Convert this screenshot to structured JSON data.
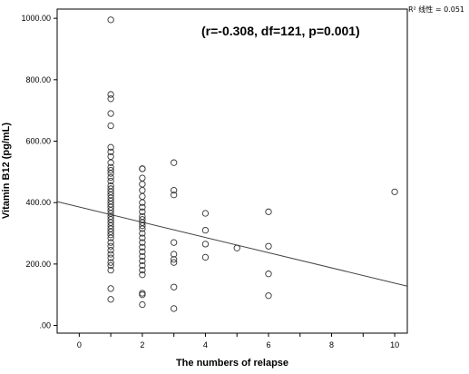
{
  "chart_data": {
    "type": "scatter",
    "title": "",
    "xlabel": "The numbers of relapse",
    "ylabel": "Vitamin B12 (pg/mL)",
    "xlim": [
      -0.7,
      10.4
    ],
    "ylim": [
      -25,
      1030
    ],
    "x_ticks": [
      "0",
      "2",
      "4",
      "6",
      "8",
      "10"
    ],
    "y_ticks": [
      ".00",
      "200.00",
      "400.00",
      "600.00",
      "800.00",
      "1000.00"
    ],
    "annotation": "(r=-0.308, df=121, p=0.001)",
    "r2_label": "R² 线性 = 0.051",
    "fit_line": {
      "x": [
        -0.7,
        10.4
      ],
      "y": [
        403,
        128
      ]
    },
    "grid": false,
    "legend": "none",
    "points": [
      {
        "x": 1,
        "y": 995
      },
      {
        "x": 1,
        "y": 752
      },
      {
        "x": 1,
        "y": 738
      },
      {
        "x": 1,
        "y": 690
      },
      {
        "x": 1,
        "y": 650
      },
      {
        "x": 1,
        "y": 580
      },
      {
        "x": 1,
        "y": 565
      },
      {
        "x": 1,
        "y": 550
      },
      {
        "x": 1,
        "y": 530
      },
      {
        "x": 1,
        "y": 515
      },
      {
        "x": 1,
        "y": 505
      },
      {
        "x": 1,
        "y": 495
      },
      {
        "x": 1,
        "y": 482
      },
      {
        "x": 1,
        "y": 470
      },
      {
        "x": 1,
        "y": 455
      },
      {
        "x": 1,
        "y": 445
      },
      {
        "x": 1,
        "y": 435
      },
      {
        "x": 1,
        "y": 425
      },
      {
        "x": 1,
        "y": 415
      },
      {
        "x": 1,
        "y": 405
      },
      {
        "x": 1,
        "y": 395
      },
      {
        "x": 1,
        "y": 385
      },
      {
        "x": 1,
        "y": 375
      },
      {
        "x": 1,
        "y": 365
      },
      {
        "x": 1,
        "y": 355
      },
      {
        "x": 1,
        "y": 345
      },
      {
        "x": 1,
        "y": 335
      },
      {
        "x": 1,
        "y": 325
      },
      {
        "x": 1,
        "y": 315
      },
      {
        "x": 1,
        "y": 305
      },
      {
        "x": 1,
        "y": 295
      },
      {
        "x": 1,
        "y": 285
      },
      {
        "x": 1,
        "y": 270
      },
      {
        "x": 1,
        "y": 258
      },
      {
        "x": 1,
        "y": 245
      },
      {
        "x": 1,
        "y": 232
      },
      {
        "x": 1,
        "y": 220
      },
      {
        "x": 1,
        "y": 205
      },
      {
        "x": 1,
        "y": 195
      },
      {
        "x": 1,
        "y": 180
      },
      {
        "x": 1,
        "y": 120
      },
      {
        "x": 1,
        "y": 85
      },
      {
        "x": 2,
        "y": 510
      },
      {
        "x": 2,
        "y": 510
      },
      {
        "x": 2,
        "y": 480
      },
      {
        "x": 2,
        "y": 460
      },
      {
        "x": 2,
        "y": 440
      },
      {
        "x": 2,
        "y": 420
      },
      {
        "x": 2,
        "y": 400
      },
      {
        "x": 2,
        "y": 385
      },
      {
        "x": 2,
        "y": 370
      },
      {
        "x": 2,
        "y": 355
      },
      {
        "x": 2,
        "y": 345
      },
      {
        "x": 2,
        "y": 335
      },
      {
        "x": 2,
        "y": 325
      },
      {
        "x": 2,
        "y": 315
      },
      {
        "x": 2,
        "y": 300
      },
      {
        "x": 2,
        "y": 285
      },
      {
        "x": 2,
        "y": 270
      },
      {
        "x": 2,
        "y": 255
      },
      {
        "x": 2,
        "y": 240
      },
      {
        "x": 2,
        "y": 225
      },
      {
        "x": 2,
        "y": 210
      },
      {
        "x": 2,
        "y": 195
      },
      {
        "x": 2,
        "y": 180
      },
      {
        "x": 2,
        "y": 165
      },
      {
        "x": 2,
        "y": 105
      },
      {
        "x": 2,
        "y": 100
      },
      {
        "x": 2,
        "y": 68
      },
      {
        "x": 3,
        "y": 530
      },
      {
        "x": 3,
        "y": 440
      },
      {
        "x": 3,
        "y": 425
      },
      {
        "x": 3,
        "y": 270
      },
      {
        "x": 3,
        "y": 232
      },
      {
        "x": 3,
        "y": 215
      },
      {
        "x": 3,
        "y": 205
      },
      {
        "x": 3,
        "y": 125
      },
      {
        "x": 3,
        "y": 55
      },
      {
        "x": 4,
        "y": 365
      },
      {
        "x": 4,
        "y": 310
      },
      {
        "x": 4,
        "y": 265
      },
      {
        "x": 4,
        "y": 222
      },
      {
        "x": 5,
        "y": 252
      },
      {
        "x": 6,
        "y": 370
      },
      {
        "x": 6,
        "y": 258
      },
      {
        "x": 6,
        "y": 168
      },
      {
        "x": 6,
        "y": 97
      },
      {
        "x": 10,
        "y": 435
      }
    ]
  }
}
